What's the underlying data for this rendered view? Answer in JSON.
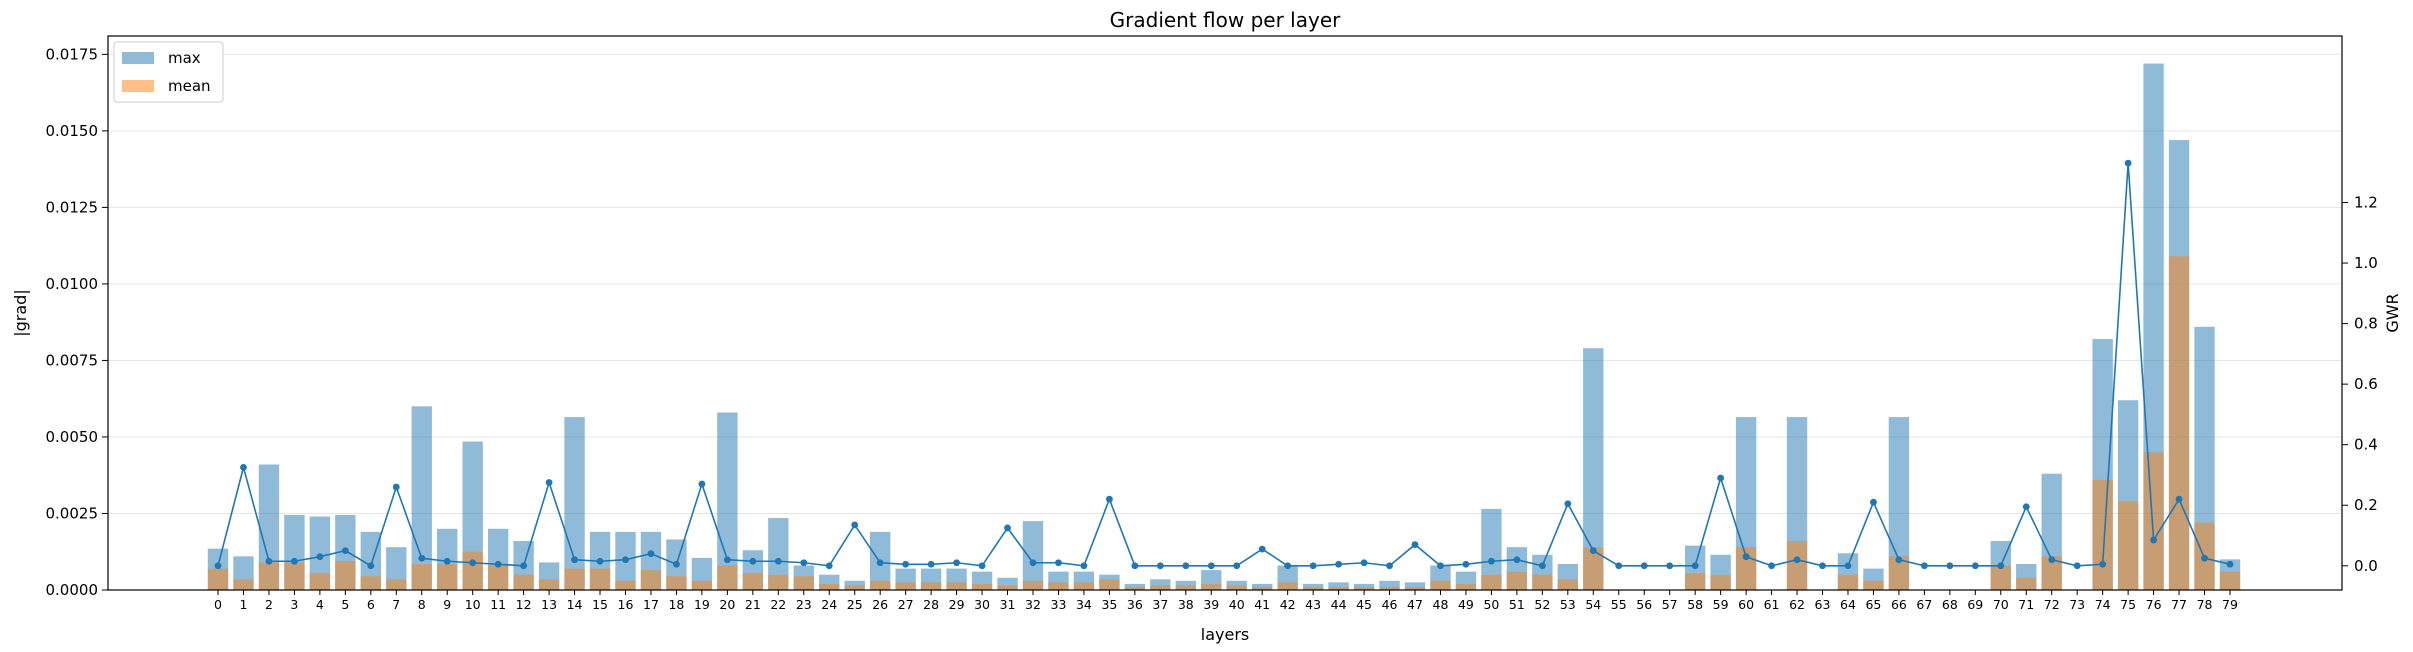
{
  "chart_data": {
    "type": "bar",
    "title": "Gradient flow per layer",
    "xlabel": "layers",
    "ylabel": "|grad|",
    "y2label": "GWR",
    "ylim": [
      0,
      0.0181
    ],
    "y2lim": [
      -0.08,
      1.75
    ],
    "yticks": [
      "0.0000",
      "0.0025",
      "0.0050",
      "0.0075",
      "0.0100",
      "0.0125",
      "0.0150",
      "0.0175"
    ],
    "y2ticks": [
      "0.0",
      "0.2",
      "0.4",
      "0.6",
      "0.8",
      "1.0",
      "1.2"
    ],
    "grid": "horizontal",
    "legend_position": "top-left",
    "colors": {
      "max": "#1f77b4",
      "mean": "#ff7f0e",
      "gwr": "#1f77b4"
    },
    "categories": [
      "0",
      "1",
      "2",
      "3",
      "4",
      "5",
      "6",
      "7",
      "8",
      "9",
      "10",
      "11",
      "12",
      "13",
      "14",
      "15",
      "16",
      "17",
      "18",
      "19",
      "20",
      "21",
      "22",
      "23",
      "24",
      "25",
      "26",
      "27",
      "28",
      "29",
      "30",
      "31",
      "32",
      "33",
      "34",
      "35",
      "36",
      "37",
      "38",
      "39",
      "40",
      "41",
      "42",
      "43",
      "44",
      "45",
      "46",
      "47",
      "48",
      "49",
      "50",
      "51",
      "52",
      "53",
      "54",
      "55",
      "56",
      "57",
      "58",
      "59",
      "60",
      "61",
      "62",
      "63",
      "64",
      "65",
      "66",
      "67",
      "68",
      "69",
      "70",
      "71",
      "72",
      "73",
      "74",
      "75",
      "76",
      "77",
      "78",
      "79"
    ],
    "series": [
      {
        "name": "max",
        "kind": "bar",
        "axis": "left",
        "values": [
          0.00135,
          0.0011,
          0.0041,
          0.00245,
          0.0024,
          0.00245,
          0.0019,
          0.0014,
          0.006,
          0.002,
          0.00485,
          0.002,
          0.0016,
          0.0009,
          0.00565,
          0.0019,
          0.0019,
          0.0019,
          0.00165,
          0.00105,
          0.0058,
          0.0013,
          0.00235,
          0.0008,
          0.0005,
          0.0003,
          0.0019,
          0.0007,
          0.0007,
          0.0007,
          0.0006,
          0.0004,
          0.00225,
          0.0006,
          0.0006,
          0.0005,
          0.0002,
          0.00035,
          0.0003,
          0.00065,
          0.0003,
          0.0002,
          0.0008,
          0.0002,
          0.00025,
          0.0002,
          0.0003,
          0.00025,
          0.0008,
          0.0006,
          0.00265,
          0.0014,
          0.00115,
          0.00085,
          0.0079,
          0.0,
          0.0,
          0.0,
          0.00145,
          0.00115,
          0.00565,
          0.0,
          0.00565,
          0.0,
          0.0012,
          0.0007,
          0.00565,
          0.0,
          0.0,
          0.0,
          0.0016,
          0.00085,
          0.0038,
          0.0,
          0.0082,
          0.0062,
          0.0172,
          0.0147,
          0.0086,
          0.001
        ]
      },
      {
        "name": "mean",
        "kind": "bar",
        "axis": "left",
        "values": [
          0.0007,
          0.00035,
          0.0009,
          0.0009,
          0.00055,
          0.00095,
          0.00045,
          0.00035,
          0.00085,
          0.00085,
          0.00125,
          0.0008,
          0.0005,
          0.00035,
          0.0007,
          0.0007,
          0.0003,
          0.00065,
          0.00045,
          0.0003,
          0.0008,
          0.00055,
          0.0005,
          0.00045,
          0.0002,
          0.00015,
          0.0003,
          0.00025,
          0.00025,
          0.00025,
          0.0002,
          0.00015,
          0.0003,
          0.00025,
          0.00025,
          0.00035,
          0.0001,
          0.00015,
          0.00015,
          0.0002,
          0.00015,
          0.0001,
          0.00025,
          0.0001,
          0.0001,
          0.0001,
          0.0001,
          0.0001,
          0.0003,
          0.0002,
          0.0005,
          0.0006,
          0.0005,
          0.00035,
          0.0014,
          0.0,
          0.0,
          0.0,
          0.00055,
          0.0005,
          0.0014,
          0.0,
          0.0016,
          0.0,
          0.0005,
          0.0003,
          0.0011,
          0.0,
          0.0,
          0.0,
          0.0008,
          0.0004,
          0.0011,
          0.0,
          0.0036,
          0.0029,
          0.0045,
          0.0109,
          0.0022,
          0.0006
        ]
      },
      {
        "name": "GWR",
        "kind": "line",
        "axis": "right",
        "values": [
          0.0,
          0.325,
          0.015,
          0.015,
          0.03,
          0.05,
          0.0,
          0.26,
          0.025,
          0.015,
          0.01,
          0.005,
          0.0,
          0.275,
          0.02,
          0.015,
          0.02,
          0.04,
          0.005,
          0.27,
          0.02,
          0.015,
          0.015,
          0.01,
          0.0,
          0.135,
          0.01,
          0.005,
          0.005,
          0.01,
          0.0,
          0.125,
          0.01,
          0.01,
          0.0,
          0.22,
          0.0,
          0.0,
          0.0,
          0.0,
          0.0,
          0.055,
          0.0,
          0.0,
          0.005,
          0.01,
          0.0,
          0.07,
          0.0,
          0.005,
          0.015,
          0.02,
          0.0,
          0.205,
          0.05,
          0.0,
          0.0,
          0.0,
          0.0,
          0.29,
          0.03,
          0.0,
          0.02,
          0.0,
          0.0,
          0.21,
          0.02,
          0.0,
          0.0,
          0.0,
          0.0,
          0.195,
          0.02,
          0.0,
          0.005,
          1.33,
          0.085,
          0.22,
          0.025,
          0.005
        ]
      }
    ]
  }
}
